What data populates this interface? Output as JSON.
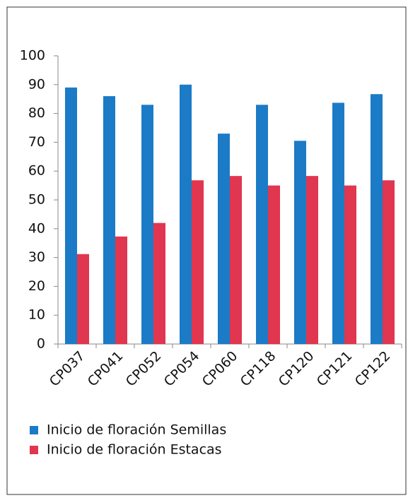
{
  "chart_data": {
    "type": "bar",
    "categories": [
      "CP037",
      "CP041",
      "CP052",
      "CP054",
      "CP060",
      "CP118",
      "CP120",
      "CP121",
      "CP122"
    ],
    "series": [
      {
        "name": "Inicio de floración Semillas",
        "color": "#1b7bc6",
        "values": [
          89,
          86,
          83,
          90,
          73,
          83,
          70.5,
          83.7,
          86.7
        ]
      },
      {
        "name": "Inicio de floración Estacas",
        "color": "#e1364f",
        "values": [
          31.2,
          37.3,
          42,
          56.8,
          58.3,
          55,
          58.3,
          55,
          56.8
        ]
      }
    ],
    "ylim": [
      0,
      100
    ],
    "yticks": [
      0,
      10,
      20,
      30,
      40,
      50,
      60,
      70,
      80,
      90,
      100
    ],
    "grid": false
  }
}
